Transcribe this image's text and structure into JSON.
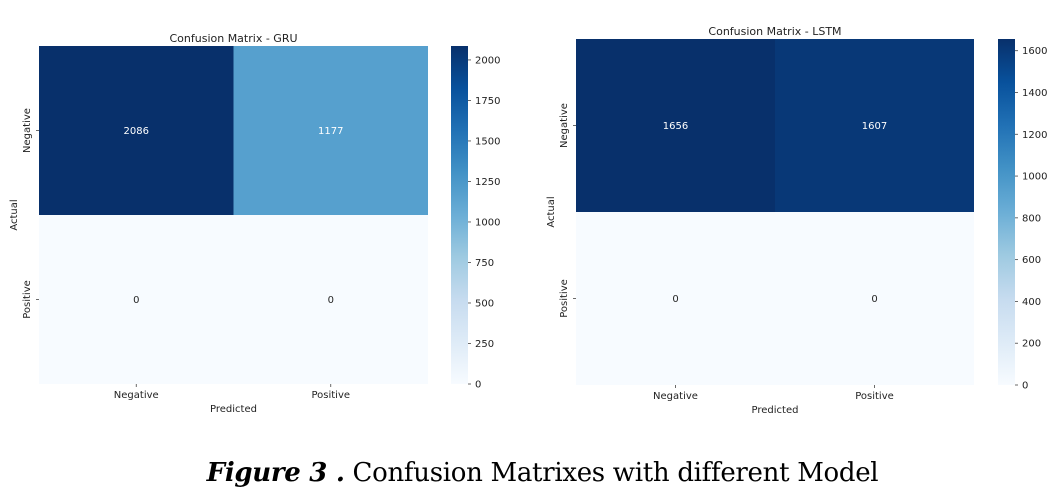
{
  "chart_data": [
    {
      "type": "heatmap",
      "title": "Confusion Matrix - GRU",
      "xlabel": "Predicted",
      "ylabel": "Actual",
      "x_categories": [
        "Negative",
        "Positive"
      ],
      "y_categories": [
        "Negative",
        "Positive"
      ],
      "values": [
        [
          2086,
          1177
        ],
        [
          0,
          0
        ]
      ],
      "colorbar": {
        "ticks": [
          0,
          250,
          500,
          750,
          1000,
          1250,
          1500,
          1750,
          2000
        ],
        "range": [
          0,
          2086
        ]
      },
      "colormap": "Blues"
    },
    {
      "type": "heatmap",
      "title": "Confusion Matrix - LSTM",
      "xlabel": "Predicted",
      "ylabel": "Actual",
      "x_categories": [
        "Negative",
        "Positive"
      ],
      "y_categories": [
        "Negative",
        "Positive"
      ],
      "values": [
        [
          1656,
          1607
        ],
        [
          0,
          0
        ]
      ],
      "colorbar": {
        "ticks": [
          0,
          200,
          400,
          600,
          800,
          1000,
          1200,
          1400,
          1600
        ],
        "range": [
          0,
          1656
        ]
      },
      "colormap": "Blues"
    }
  ],
  "caption": {
    "figure_label": "Figure 3 .",
    "text": " Confusion Matrixes with different Model"
  }
}
